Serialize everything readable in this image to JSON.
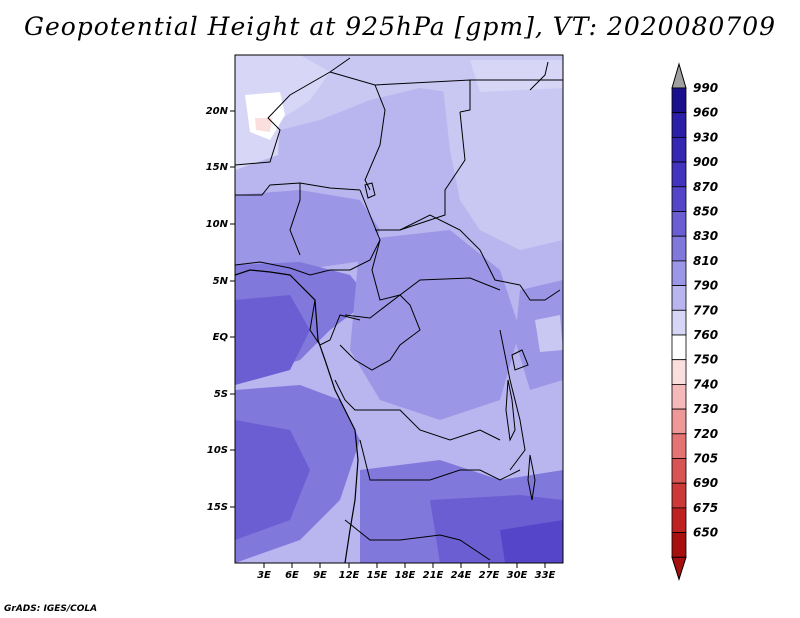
{
  "title": "Geopotential Height at 925hPa [gpm], VT: 2020080709",
  "credit": "GrADS: IGES/COLA",
  "axes": {
    "lon_ticks": [
      "3E",
      "6E",
      "9E",
      "12E",
      "15E",
      "18E",
      "21E",
      "24E",
      "27E",
      "30E",
      "33E"
    ],
    "lat_ticks": [
      "20N",
      "15N",
      "10N",
      "5N",
      "EQ",
      "5S",
      "10S",
      "15S"
    ]
  },
  "colorbar": {
    "levels": [
      "990",
      "960",
      "930",
      "900",
      "870",
      "850",
      "830",
      "810",
      "790",
      "770",
      "760",
      "750",
      "740",
      "730",
      "720",
      "705",
      "690",
      "675",
      "650"
    ],
    "colors": [
      "#1a0f8c",
      "#2a1fa6",
      "#3626b4",
      "#4334c0",
      "#5546c9",
      "#6a5ed2",
      "#8178dc",
      "#9c96e6",
      "#b9b6ef",
      "#d7d6f7",
      "#ffffff",
      "#fbdede",
      "#f6b9b9",
      "#ef9898",
      "#e47474",
      "#d95454",
      "#cd3838",
      "#bf2121",
      "#a80f0f"
    ],
    "top_arrow_color": "#a0a0a0",
    "bottom_arrow_color": "#a80f0f"
  }
}
